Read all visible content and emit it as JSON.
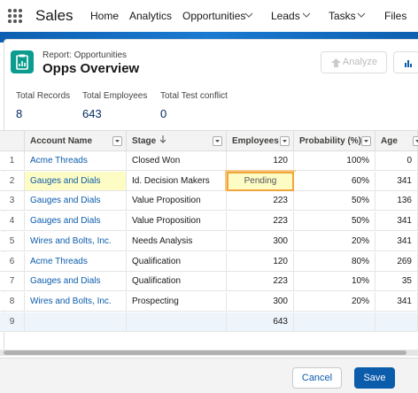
{
  "nav": {
    "app": "Sales",
    "items": [
      "Home",
      "Analytics",
      "Opportunities",
      "Leads",
      "Tasks",
      "Files"
    ]
  },
  "header": {
    "subtitle": "Report: Opportunities",
    "title": "Opps Overview",
    "analyze": "Analyze"
  },
  "summary": [
    {
      "label": "Total Records",
      "value": "8"
    },
    {
      "label": "Total Employees",
      "value": "643"
    },
    {
      "label": "Total Test conflict",
      "value": "0"
    }
  ],
  "table": {
    "columns": [
      "Account Name",
      "Stage",
      "Employees",
      "Probability (%)",
      "Age"
    ],
    "rows": [
      [
        "1",
        "Acme Threads",
        "Closed Won",
        "120",
        "100%",
        "0"
      ],
      [
        "2",
        "Gauges and Dials",
        "Id. Decision Makers",
        "Pending",
        "60%",
        "341"
      ],
      [
        "3",
        "Gauges and Dials",
        "Value Proposition",
        "223",
        "50%",
        "136"
      ],
      [
        "4",
        "Gauges and Dials",
        "Value Proposition",
        "223",
        "50%",
        "341"
      ],
      [
        "5",
        "Wires and Bolts, Inc.",
        "Needs Analysis",
        "300",
        "20%",
        "341"
      ],
      [
        "6",
        "Acme Threads",
        "Qualification",
        "120",
        "80%",
        "269"
      ],
      [
        "7",
        "Gauges and Dials",
        "Qualification",
        "223",
        "10%",
        "35"
      ],
      [
        "8",
        "Wires and Bolts, Inc.",
        "Prospecting",
        "300",
        "20%",
        "341"
      ],
      [
        "9",
        null,
        null,
        "643",
        null,
        null
      ]
    ]
  },
  "footer": {
    "cancel": "Cancel",
    "save": "Save"
  }
}
